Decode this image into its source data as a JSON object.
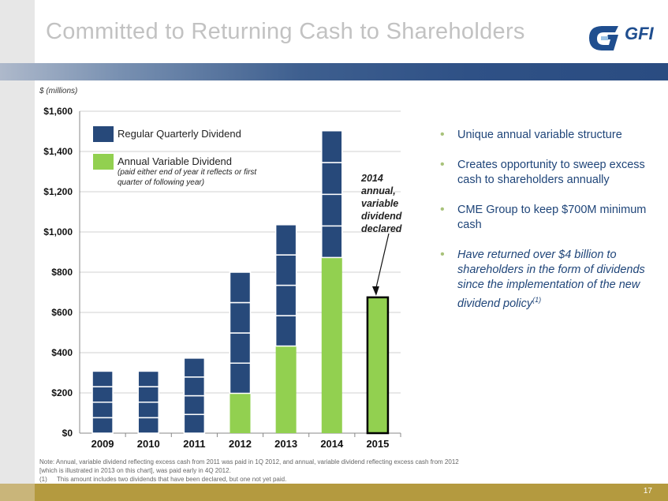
{
  "title": "Committed to Returning Cash to Shareholders",
  "logo_text": "GFI",
  "units_label": "$ (millions)",
  "colors": {
    "regular": "#27497a",
    "variable": "#92d050",
    "accent_bullet": "#a8c27a"
  },
  "legend": {
    "regular_label": "Regular Quarterly Dividend",
    "variable_label": "Annual Variable Dividend",
    "variable_sub": "(paid either end of year it reflects or first quarter of following year)"
  },
  "annotation": "2014 annual, variable dividend declared",
  "bullets": [
    {
      "text": "Unique annual variable structure",
      "italic": false
    },
    {
      "text": "Creates opportunity to sweep excess cash to shareholders annually",
      "italic": false
    },
    {
      "text": "CME Group to keep $700M minimum cash",
      "italic": false
    },
    {
      "text": "Have returned over $4 billion to shareholders in the form of dividends since the implementation of the new dividend policy",
      "italic": true,
      "sup": "(1)"
    }
  ],
  "note": {
    "main": "Note: Annual, variable dividend reflecting excess cash from 2011 was paid in 1Q 2012, and annual, variable dividend reflecting excess cash from 2012 [which is illustrated in 2013 on this chart], was paid early in 4Q 2012.",
    "footnote_marker": "(1)",
    "footnote": "This amount includes two dividends that have been declared, but one not yet paid."
  },
  "page_number": "17",
  "chart_data": {
    "type": "bar",
    "stacked": true,
    "categories": [
      "2009",
      "2010",
      "2011",
      "2012",
      "2013",
      "2014",
      "2015"
    ],
    "series": [
      {
        "name": "Annual Variable Dividend",
        "values": [
          0,
          0,
          0,
          198,
          433,
          873,
          675
        ]
      },
      {
        "name": "Regular Quarterly Dividend",
        "values": [
          308,
          308,
          373,
          602,
          603,
          630,
          0
        ]
      }
    ],
    "quarter_breaks": [
      [
        77,
        77,
        77,
        77
      ],
      [
        77,
        77,
        77,
        77
      ],
      [
        93,
        93,
        93,
        94
      ],
      [
        150,
        150,
        151,
        151
      ],
      [
        151,
        151,
        151,
        150
      ],
      [
        157,
        157,
        158,
        158
      ],
      []
    ],
    "ylim": [
      0,
      1600
    ],
    "yticks": [
      0,
      200,
      400,
      600,
      800,
      1000,
      1200,
      1400,
      1600
    ],
    "ytick_labels": [
      "$0",
      "$200",
      "$400",
      "$600",
      "$800",
      "$1,000",
      "$1,200",
      "$1,400",
      "$1,600"
    ],
    "ylabel": "$ (millions)",
    "highlight_category": "2015"
  }
}
